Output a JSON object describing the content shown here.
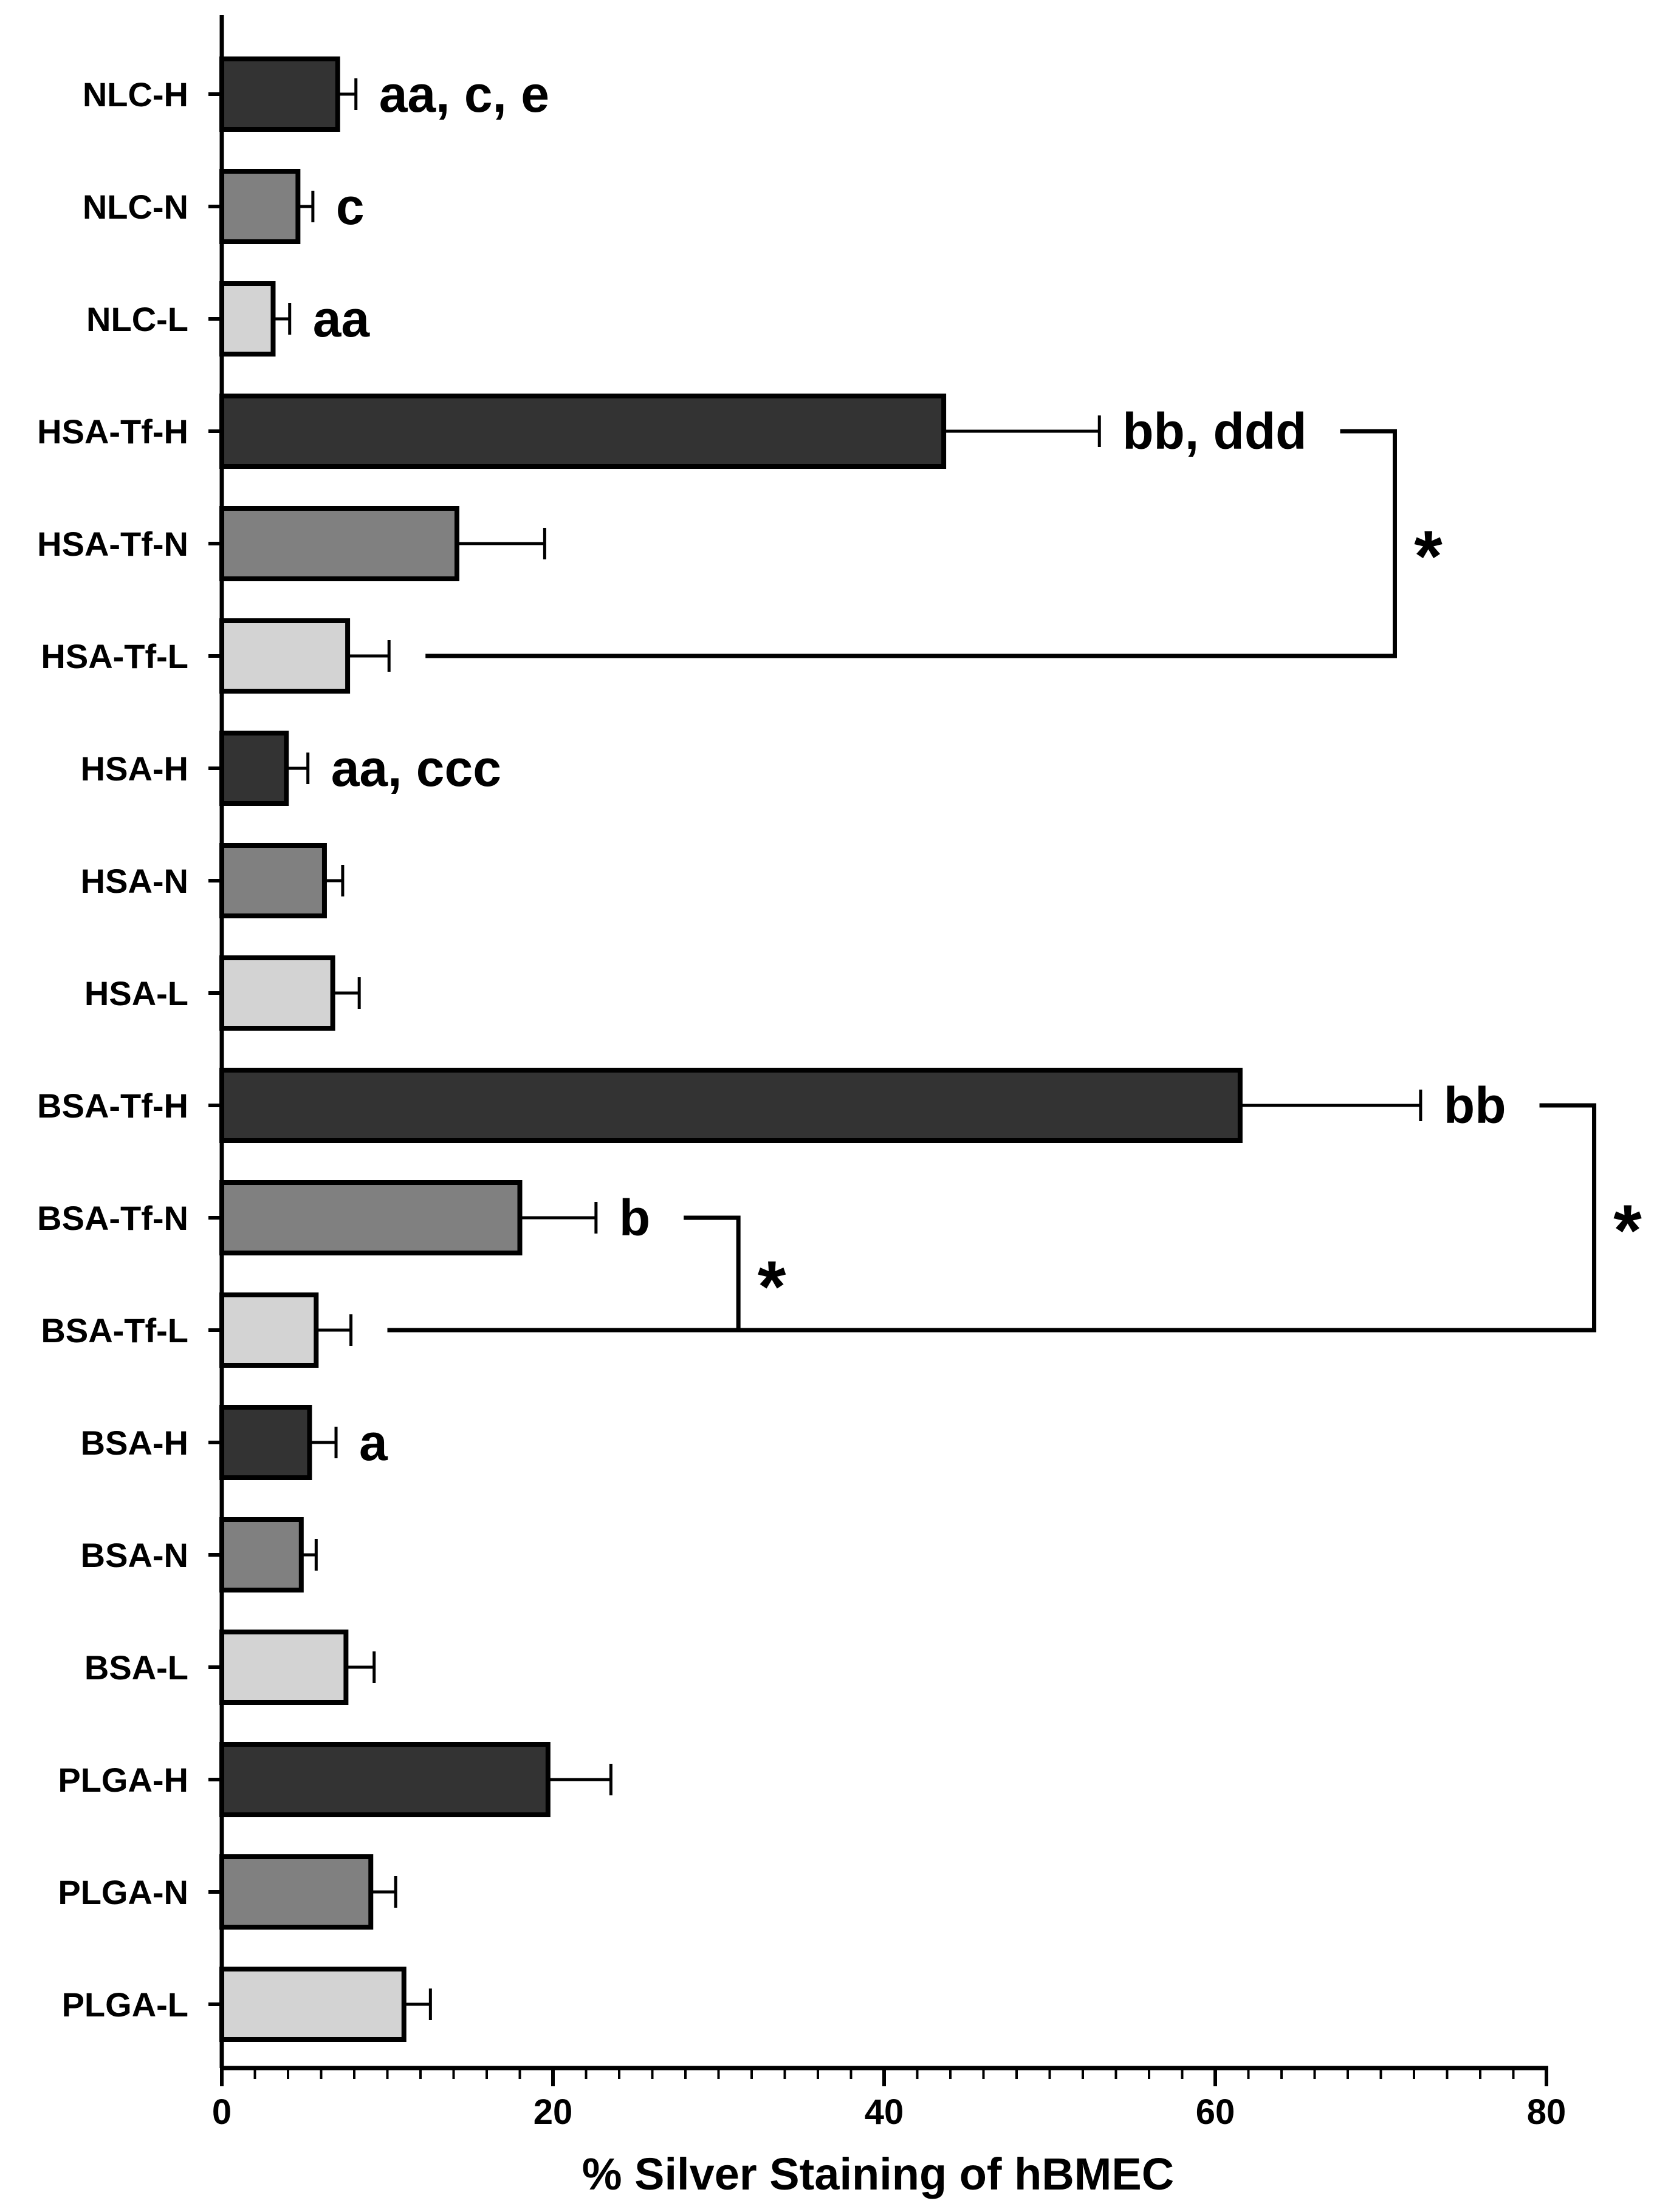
{
  "chart_data": {
    "type": "bar",
    "orientation": "horizontal",
    "title": "",
    "xlabel": "% Silver Staining of hBMEC",
    "ylabel": "",
    "xlim": [
      0,
      80
    ],
    "x_ticks": [
      "0",
      "20",
      "40",
      "60",
      "80"
    ],
    "grid": false,
    "categories": [
      "NLC-H",
      "NLC-N",
      "NLC-L",
      "HSA-Tf-H",
      "HSA-Tf-N",
      "HSA-Tf-L",
      "HSA-H",
      "HSA-N",
      "HSA-L",
      "BSA-Tf-H",
      "BSA-Tf-N",
      "BSA-Tf-L",
      "BSA-H",
      "BSA-N",
      "BSA-L",
      "PLGA-H",
      "PLGA-N",
      "PLGA-L"
    ],
    "values": [
      7.0,
      4.6,
      3.1,
      43.6,
      14.2,
      7.6,
      3.9,
      6.2,
      6.7,
      61.5,
      18.0,
      5.7,
      5.3,
      4.8,
      7.5,
      19.7,
      9.0,
      11.0
    ],
    "errors": [
      1.1,
      0.9,
      1.0,
      9.4,
      5.3,
      2.5,
      1.3,
      1.1,
      1.6,
      10.9,
      4.6,
      2.1,
      1.6,
      0.9,
      1.7,
      3.8,
      1.5,
      1.6
    ],
    "bar_colors": {
      "H": "#333333",
      "N": "#808080",
      "L": "#d3d3d3"
    },
    "annotations": [
      {
        "category": "NLC-H",
        "text": "aa, c, e"
      },
      {
        "category": "NLC-N",
        "text": "c"
      },
      {
        "category": "NLC-L",
        "text": "aa"
      },
      {
        "category": "HSA-Tf-H",
        "text": "bb, ddd"
      },
      {
        "category": "HSA-H",
        "text": "aa, ccc"
      },
      {
        "category": "BSA-Tf-H",
        "text": "bb"
      },
      {
        "category": "BSA-Tf-N",
        "text": "b"
      },
      {
        "category": "BSA-H",
        "text": "a"
      }
    ],
    "significance": [
      {
        "from": "HSA-Tf-H",
        "to": "HSA-Tf-L",
        "label": "*"
      },
      {
        "from": "BSA-Tf-N",
        "to": "BSA-Tf-L",
        "label": "*"
      },
      {
        "from": "BSA-Tf-H",
        "to": "BSA-Tf-L",
        "label": "*"
      }
    ]
  }
}
